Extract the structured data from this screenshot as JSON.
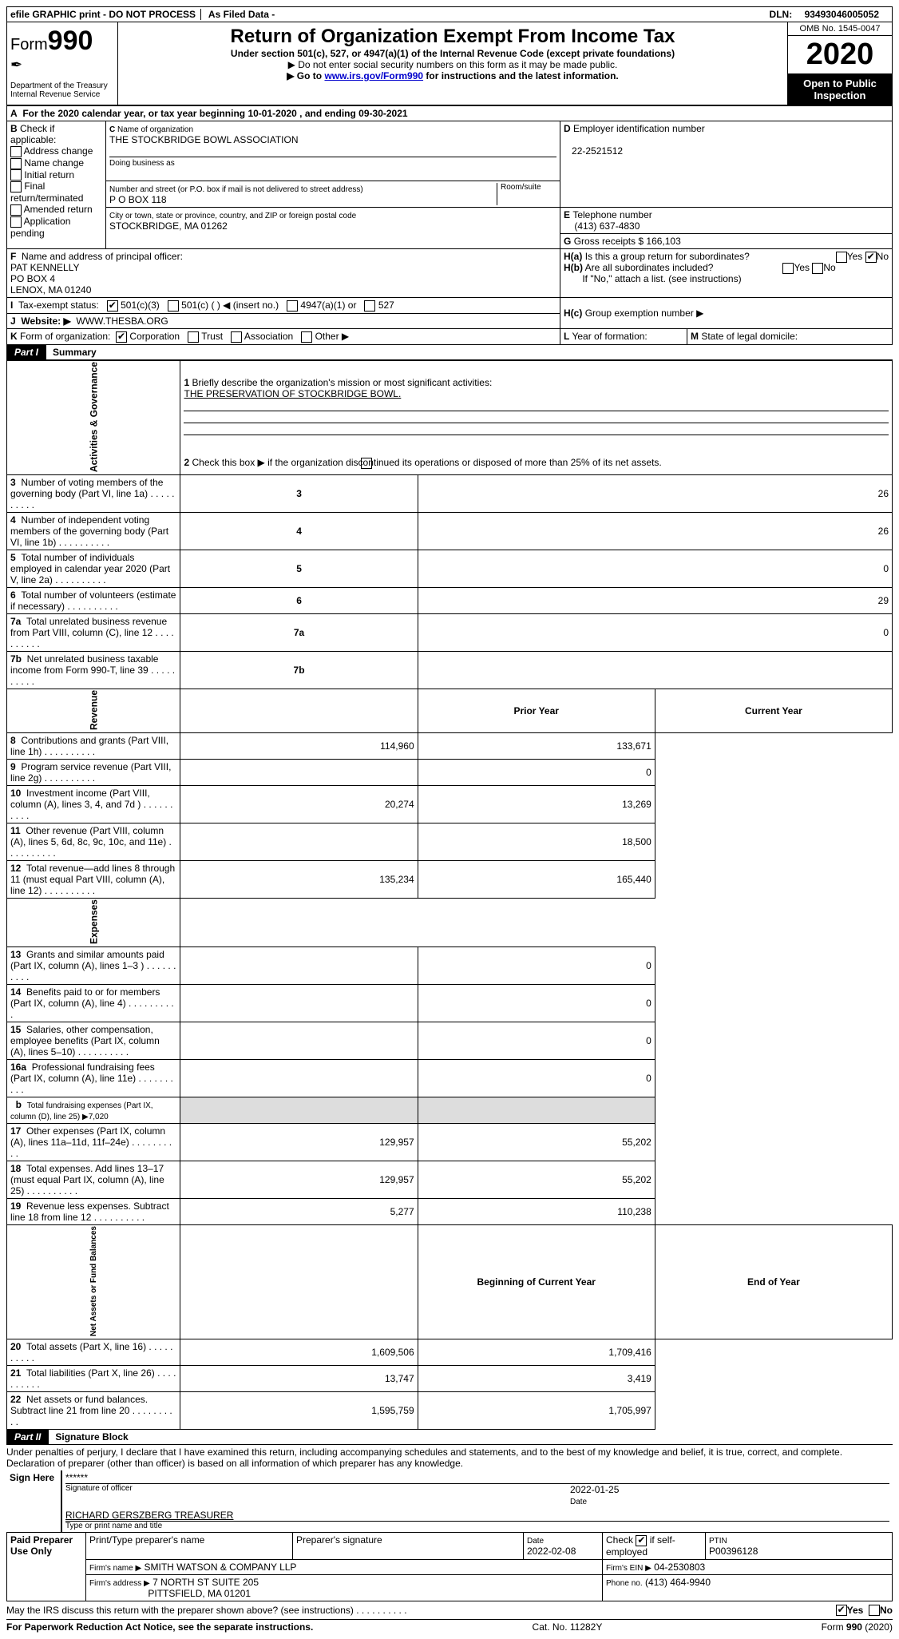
{
  "top": {
    "efile": "efile GRAPHIC print - DO NOT PROCESS",
    "asfiled": "As Filed Data -",
    "dln_label": "DLN:",
    "dln": "93493046005052"
  },
  "header": {
    "form_prefix": "Form",
    "form_no": "990",
    "dept": "Department of the Treasury\nInternal Revenue Service",
    "title": "Return of Organization Exempt From Income Tax",
    "sub": "Under section 501(c), 527, or 4947(a)(1) of the Internal Revenue Code (except private foundations)",
    "note1": "▶ Do not enter social security numbers on this form as it may be made public.",
    "note2_pre": "▶ Go to ",
    "note2_link": "www.irs.gov/Form990",
    "note2_post": " for instructions and the latest information.",
    "omb": "OMB No. 1545-0047",
    "year": "2020",
    "open": "Open to Public Inspection"
  },
  "A": {
    "text": "For the 2020 calendar year, or tax year beginning 10-01-2020   , and ending 09-30-2021"
  },
  "B": {
    "label": "Check if applicable:",
    "opts": [
      "Address change",
      "Name change",
      "Initial return",
      "Final return/terminated",
      "Amended return",
      "Application pending"
    ]
  },
  "C": {
    "name_lbl": "Name of organization",
    "name": "THE STOCKBRIDGE BOWL ASSOCIATION",
    "dba_lbl": "Doing business as",
    "street_lbl": "Number and street (or P.O. box if mail is not delivered to street address)",
    "room_lbl": "Room/suite",
    "street": "P O BOX 118",
    "city_lbl": "City or town, state or province, country, and ZIP or foreign postal code",
    "city": "STOCKBRIDGE, MA  01262"
  },
  "D": {
    "lbl": "Employer identification number",
    "val": "22-2521512"
  },
  "E": {
    "lbl": "Telephone number",
    "val": "(413) 637-4830"
  },
  "G": {
    "lbl": "Gross receipts $",
    "val": "166,103"
  },
  "F": {
    "lbl": "Name and address of principal officer:",
    "lines": [
      "PAT KENNELLY",
      "PO BOX 4",
      "LENOX, MA  01240"
    ]
  },
  "H": {
    "a": "Is this a group return for subordinates?",
    "b": "Are all subordinates included?",
    "no_note": "If \"No,\" attach a list. (see instructions)",
    "c": "Group exemption number ▶",
    "yes": "Yes",
    "no": "No"
  },
  "I": {
    "lbl": "Tax-exempt status:",
    "opts": [
      "501(c)(3)",
      "501(c) (  ) ◀ (insert no.)",
      "4947(a)(1) or",
      "527"
    ]
  },
  "J": {
    "lbl": "Website: ▶",
    "val": "WWW.THESBA.ORG"
  },
  "K": {
    "lbl": "Form of organization:",
    "opts": [
      "Corporation",
      "Trust",
      "Association",
      "Other ▶"
    ]
  },
  "L": {
    "lbl": "Year of formation:"
  },
  "M": {
    "lbl": "State of legal domicile:"
  },
  "partI": {
    "tag": "Part I",
    "title": "Summary",
    "l1": "Briefly describe the organization's mission or most significant activities:",
    "mission": "THE PRESERVATION OF STOCKBRIDGE BOWL.",
    "l2": "Check this box ▶          if the organization discontinued its operations or disposed of more than 25% of its net assets.",
    "rows_gov": [
      {
        "n": "3",
        "t": "Number of voting members of the governing body (Part VI, line 1a)",
        "v": "26"
      },
      {
        "n": "4",
        "t": "Number of independent voting members of the governing body (Part VI, line 1b)",
        "v": "26"
      },
      {
        "n": "5",
        "t": "Total number of individuals employed in calendar year 2020 (Part V, line 2a)",
        "v": "0"
      },
      {
        "n": "6",
        "t": "Total number of volunteers (estimate if necessary)",
        "v": "29"
      },
      {
        "n": "7a",
        "t": "Total unrelated business revenue from Part VIII, column (C), line 12",
        "v": "0"
      },
      {
        "n": "7b",
        "t": "Net unrelated business taxable income from Form 990-T, line 39",
        "v": ""
      }
    ],
    "hdr_prior": "Prior Year",
    "hdr_curr": "Current Year",
    "rows_rev": [
      {
        "n": "8",
        "t": "Contributions and grants (Part VIII, line 1h)",
        "p": "114,960",
        "c": "133,671"
      },
      {
        "n": "9",
        "t": "Program service revenue (Part VIII, line 2g)",
        "p": "",
        "c": "0"
      },
      {
        "n": "10",
        "t": "Investment income (Part VIII, column (A), lines 3, 4, and 7d )",
        "p": "20,274",
        "c": "13,269"
      },
      {
        "n": "11",
        "t": "Other revenue (Part VIII, column (A), lines 5, 6d, 8c, 9c, 10c, and 11e)",
        "p": "",
        "c": "18,500"
      },
      {
        "n": "12",
        "t": "Total revenue—add lines 8 through 11 (must equal Part VIII, column (A), line 12)",
        "p": "135,234",
        "c": "165,440"
      }
    ],
    "rows_exp": [
      {
        "n": "13",
        "t": "Grants and similar amounts paid (Part IX, column (A), lines 1–3 )",
        "p": "",
        "c": "0"
      },
      {
        "n": "14",
        "t": "Benefits paid to or for members (Part IX, column (A), line 4)",
        "p": "",
        "c": "0"
      },
      {
        "n": "15",
        "t": "Salaries, other compensation, employee benefits (Part IX, column (A), lines 5–10)",
        "p": "",
        "c": "0"
      },
      {
        "n": "16a",
        "t": "Professional fundraising fees (Part IX, column (A), line 11e)",
        "p": "",
        "c": "0"
      }
    ],
    "l16b": "Total fundraising expenses (Part IX, column (D), line 25) ▶7,020",
    "rows_exp2": [
      {
        "n": "17",
        "t": "Other expenses (Part IX, column (A), lines 11a–11d, 11f–24e)",
        "p": "129,957",
        "c": "55,202"
      },
      {
        "n": "18",
        "t": "Total expenses. Add lines 13–17 (must equal Part IX, column (A), line 25)",
        "p": "129,957",
        "c": "55,202"
      },
      {
        "n": "19",
        "t": "Revenue less expenses. Subtract line 18 from line 12",
        "p": "5,277",
        "c": "110,238"
      }
    ],
    "hdr_beg": "Beginning of Current Year",
    "hdr_end": "End of Year",
    "rows_net": [
      {
        "n": "20",
        "t": "Total assets (Part X, line 16)",
        "p": "1,609,506",
        "c": "1,709,416"
      },
      {
        "n": "21",
        "t": "Total liabilities (Part X, line 26)",
        "p": "13,747",
        "c": "3,419"
      },
      {
        "n": "22",
        "t": "Net assets or fund balances. Subtract line 21 from line 20",
        "p": "1,595,759",
        "c": "1,705,997"
      }
    ],
    "sidelabels": [
      "Activities & Governance",
      "Revenue",
      "Expenses",
      "Net Assets or Fund Balances"
    ]
  },
  "partII": {
    "tag": "Part II",
    "title": "Signature Block",
    "decl": "Under penalties of perjury, I declare that I have examined this return, including accompanying schedules and statements, and to the best of my knowledge and belief, it is true, correct, and complete. Declaration of preparer (other than officer) is based on all information of which preparer has any knowledge.",
    "sign_here": "Sign Here",
    "sig_stars": "******",
    "sig_lbl": "Signature of officer",
    "date_lbl": "Date",
    "sig_date": "2022-01-25",
    "name": "RICHARD GERSZBERG TREASURER",
    "name_lbl": "Type or print name and title",
    "paid": "Paid Preparer Use Only",
    "pp_name_lbl": "Print/Type preparer's name",
    "pp_sig_lbl": "Preparer's signature",
    "pp_date": "2022-02-08",
    "pp_check": "Check          if self-employed",
    "ptin_lbl": "PTIN",
    "ptin": "P00396128",
    "firm_name_lbl": "Firm's name    ▶",
    "firm_name": "SMITH WATSON & COMPANY LLP",
    "firm_ein_lbl": "Firm's EIN ▶",
    "firm_ein": "04-2530803",
    "firm_addr_lbl": "Firm's address ▶",
    "firm_addr1": "7 NORTH ST SUITE 205",
    "firm_addr2": "PITTSFIELD, MA  01201",
    "phone_lbl": "Phone no.",
    "phone": "(413) 464-9940",
    "discuss": "May the IRS discuss this return with the preparer shown above? (see instructions)"
  },
  "footer": {
    "pra": "For Paperwork Reduction Act Notice, see the separate instructions.",
    "cat": "Cat. No. 11282Y",
    "form": "Form 990 (2020)"
  }
}
